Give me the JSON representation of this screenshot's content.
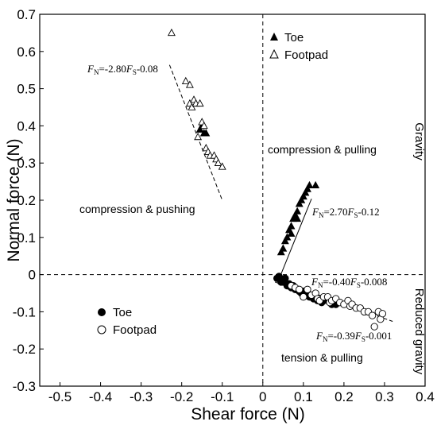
{
  "chart_data": {
    "type": "scatter",
    "xlabel": "Shear force (N)",
    "ylabel": "Normal force (N)",
    "xlim": [
      -0.55,
      0.4
    ],
    "ylim": [
      -0.3,
      0.7
    ],
    "xticks": [
      -0.5,
      -0.4,
      -0.3,
      -0.2,
      -0.1,
      0,
      0.1,
      0.2,
      0.3,
      0.4
    ],
    "xtick_labels": [
      "-0.5",
      "-0.4",
      "-0.3",
      "-0.2",
      "-0.1",
      "0",
      "0.1",
      "0.2",
      "0.3",
      "0.4"
    ],
    "yticks": [
      -0.3,
      -0.2,
      -0.1,
      0,
      0.1,
      0.2,
      0.3,
      0.4,
      0.5,
      0.6,
      0.7
    ],
    "ytick_labels": [
      "-0.3",
      "-0.2",
      "-0.1",
      "0",
      "0.1",
      "0.2",
      "0.3",
      "0.4",
      "0.5",
      "0.6",
      "0.7"
    ],
    "right_labels": {
      "top": "Gravity",
      "bottom": "Reduced gravity"
    },
    "region_labels": {
      "compression_pushing": "compression & pushing",
      "compression_pulling": "compression & pulling",
      "tension_pulling": "tension & pulling"
    },
    "legends": {
      "upper": {
        "toe": "Toe",
        "footpad": "Footpad"
      },
      "lower": {
        "toe": "Toe",
        "footpad": "Footpad"
      }
    },
    "fits": [
      {
        "label_main": "F",
        "label_sub": "N",
        "label_mid": "=-2.80",
        "label_sub2": "S",
        "label_tail": "-0.08",
        "slope": -2.8,
        "intercept": -0.08,
        "x_range": [
          -0.23,
          -0.1
        ],
        "style": "dashed"
      },
      {
        "label_main": "F",
        "label_sub": "N",
        "label_mid": "=2.70",
        "label_sub2": "S",
        "label_tail": "-0.12",
        "slope": 2.7,
        "intercept": -0.12,
        "x_range": [
          0.04,
          0.12
        ],
        "style": "solid"
      },
      {
        "label_main": "F",
        "label_sub": "N",
        "label_mid": "=-0.40",
        "label_sub2": "S",
        "label_tail": "-0.008",
        "slope": -0.4,
        "intercept": -0.008,
        "x_range": [
          0.03,
          0.17
        ],
        "style": "solid"
      },
      {
        "label_main": "F",
        "label_sub": "N",
        "label_mid": "=-0.39",
        "label_sub2": "S",
        "label_tail": "-0.001",
        "slope": -0.39,
        "intercept": -0.001,
        "x_range": [
          0.12,
          0.32
        ],
        "style": "dashed"
      }
    ],
    "series": [
      {
        "name": "Toe",
        "marker": "filled-triangle",
        "color": "#000000",
        "points": [
          [
            -0.155,
            0.39
          ],
          [
            -0.145,
            0.38
          ],
          [
            -0.15,
            0.4
          ],
          [
            -0.14,
            0.38
          ],
          [
            0.05,
            0.07
          ],
          [
            0.055,
            0.09
          ],
          [
            0.06,
            0.1
          ],
          [
            0.065,
            0.12
          ],
          [
            0.07,
            0.13
          ],
          [
            0.075,
            0.15
          ],
          [
            0.08,
            0.16
          ],
          [
            0.085,
            0.17
          ],
          [
            0.09,
            0.19
          ],
          [
            0.095,
            0.2
          ],
          [
            0.1,
            0.21
          ],
          [
            0.105,
            0.22
          ],
          [
            0.11,
            0.23
          ],
          [
            0.115,
            0.24
          ],
          [
            0.13,
            0.24
          ],
          [
            0.045,
            0.06
          ],
          [
            0.07,
            0.11
          ],
          [
            0.085,
            0.15
          ]
        ]
      },
      {
        "name": "Footpad",
        "marker": "open-triangle",
        "color": "#000000",
        "points": [
          [
            -0.225,
            0.65
          ],
          [
            -0.19,
            0.52
          ],
          [
            -0.18,
            0.51
          ],
          [
            -0.18,
            0.46
          ],
          [
            -0.175,
            0.45
          ],
          [
            -0.17,
            0.47
          ],
          [
            -0.165,
            0.46
          ],
          [
            -0.155,
            0.46
          ],
          [
            -0.16,
            0.37
          ],
          [
            -0.15,
            0.41
          ],
          [
            -0.145,
            0.4
          ],
          [
            -0.14,
            0.34
          ],
          [
            -0.135,
            0.33
          ],
          [
            -0.13,
            0.32
          ],
          [
            -0.12,
            0.32
          ],
          [
            -0.115,
            0.31
          ],
          [
            -0.11,
            0.3
          ],
          [
            -0.1,
            0.29
          ]
        ]
      },
      {
        "name": "Toe",
        "marker": "filled-circle",
        "color": "#000000",
        "points": [
          [
            0.035,
            -0.01
          ],
          [
            0.04,
            -0.005
          ],
          [
            0.045,
            -0.02
          ],
          [
            0.05,
            -0.02
          ],
          [
            0.055,
            -0.01
          ],
          [
            0.06,
            -0.03
          ],
          [
            0.065,
            -0.025
          ],
          [
            0.07,
            -0.035
          ],
          [
            0.075,
            -0.03
          ],
          [
            0.08,
            -0.04
          ],
          [
            0.085,
            -0.04
          ],
          [
            0.09,
            -0.045
          ],
          [
            0.095,
            -0.05
          ],
          [
            0.1,
            -0.045
          ],
          [
            0.105,
            -0.055
          ],
          [
            0.11,
            -0.05
          ],
          [
            0.115,
            -0.06
          ],
          [
            0.12,
            -0.06
          ],
          [
            0.125,
            -0.065
          ],
          [
            0.13,
            -0.065
          ],
          [
            0.135,
            -0.07
          ],
          [
            0.14,
            -0.07
          ],
          [
            0.145,
            -0.075
          ],
          [
            0.15,
            -0.07
          ],
          [
            0.16,
            -0.07
          ],
          [
            0.17,
            -0.08
          ],
          [
            0.18,
            -0.08
          ]
        ]
      },
      {
        "name": "Footpad",
        "marker": "open-circle",
        "color": "#000000",
        "points": [
          [
            0.07,
            -0.03
          ],
          [
            0.08,
            -0.035
          ],
          [
            0.09,
            -0.04
          ],
          [
            0.1,
            -0.06
          ],
          [
            0.11,
            -0.04
          ],
          [
            0.12,
            -0.055
          ],
          [
            0.13,
            -0.05
          ],
          [
            0.135,
            -0.065
          ],
          [
            0.14,
            -0.07
          ],
          [
            0.15,
            -0.06
          ],
          [
            0.16,
            -0.06
          ],
          [
            0.165,
            -0.075
          ],
          [
            0.17,
            -0.07
          ],
          [
            0.18,
            -0.065
          ],
          [
            0.19,
            -0.075
          ],
          [
            0.2,
            -0.08
          ],
          [
            0.21,
            -0.07
          ],
          [
            0.215,
            -0.085
          ],
          [
            0.22,
            -0.08
          ],
          [
            0.23,
            -0.09
          ],
          [
            0.24,
            -0.09
          ],
          [
            0.25,
            -0.1
          ],
          [
            0.26,
            -0.1
          ],
          [
            0.27,
            -0.11
          ],
          [
            0.275,
            -0.14
          ],
          [
            0.285,
            -0.1
          ],
          [
            0.29,
            -0.12
          ],
          [
            0.295,
            -0.105
          ]
        ]
      }
    ]
  }
}
